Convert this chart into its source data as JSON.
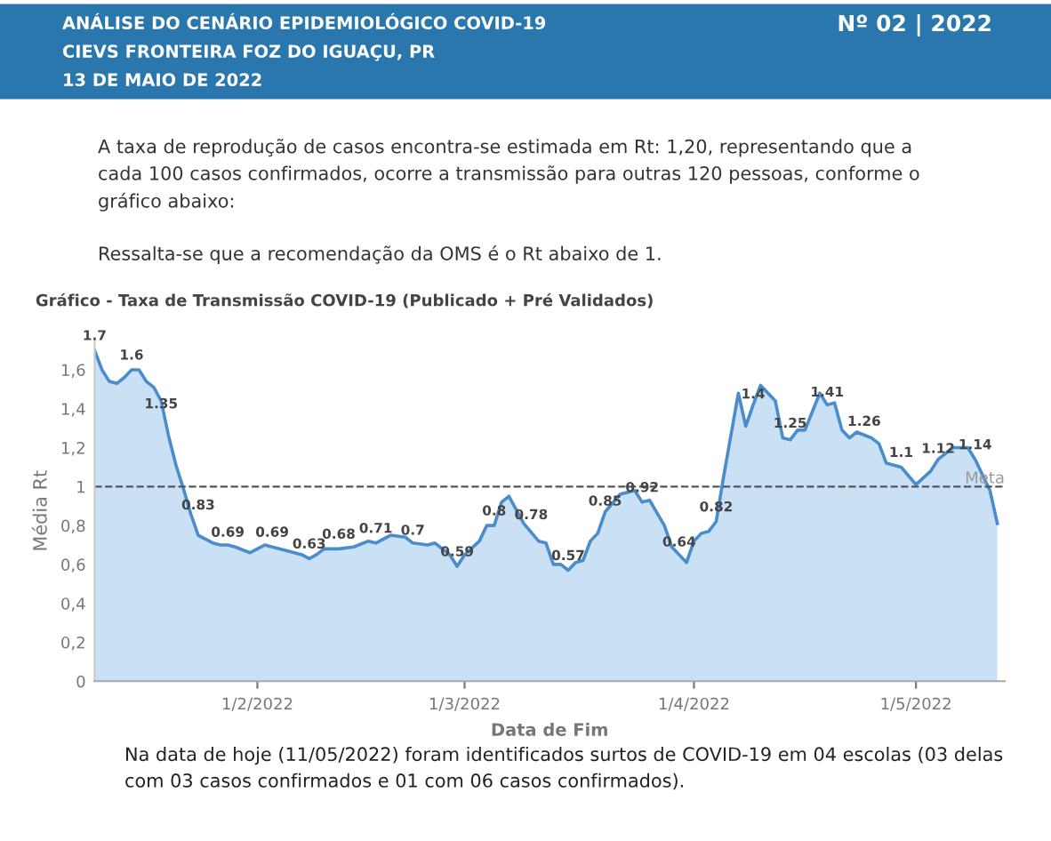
{
  "chart_data": {
    "type": "area",
    "title": "Gráfico - Taxa de Transmissão COVID-19 (Publicado + Pré Validados)",
    "xlabel": "Data de Fim",
    "ylabel": "Média Rt",
    "annotations": [
      "ANÁLISE DO CENÁRIO EPIDEMIOLÓGICO COVID-19",
      "CIEVS FRONTEIRA FOZ DO IGUAÇU, PR",
      "13 DE MAIO DE 2022",
      "Nº 02 | 2022",
      "A taxa de reprodução de casos encontra-se estimada em Rt: 1,20, representando que a cada 100 casos confirmados, ocorre a transmissão para outras 120 pessoas, conforme o gráfico abaixo:",
      "Ressalta-se que a recomendação da OMS é o Rt abaixo de 1.",
      "Na data de hoje (11/05/2022) foram identificados surtos de COVID-19 em 04 escolas (03 delas com 03 casos confirmados e 01 com 06 casos confirmados).",
      {
        "text": "1.7",
        "x": "2022-01-10",
        "y": 1.7
      },
      {
        "text": "1.6",
        "x": "2022-01-15",
        "y": 1.6
      },
      {
        "text": "1.35",
        "x": "2022-01-19",
        "y": 1.35
      },
      {
        "text": "0.83",
        "x": "2022-01-24",
        "y": 0.83
      },
      {
        "text": "0.69",
        "x": "2022-01-28",
        "y": 0.69
      },
      {
        "text": "0.69",
        "x": "2022-02-03",
        "y": 0.69
      },
      {
        "text": "0.63",
        "x": "2022-02-08",
        "y": 0.63
      },
      {
        "text": "0.68",
        "x": "2022-02-12",
        "y": 0.68
      },
      {
        "text": "0.71",
        "x": "2022-02-17",
        "y": 0.71
      },
      {
        "text": "0.7",
        "x": "2022-02-22",
        "y": 0.7
      },
      {
        "text": "0.59",
        "x": "2022-02-28",
        "y": 0.59
      },
      {
        "text": "0.8",
        "x": "2022-03-05",
        "y": 0.8
      },
      {
        "text": "0.78",
        "x": "2022-03-10",
        "y": 0.78
      },
      {
        "text": "0.57",
        "x": "2022-03-15",
        "y": 0.57
      },
      {
        "text": "0.85",
        "x": "2022-03-20",
        "y": 0.85
      },
      {
        "text": "0.92",
        "x": "2022-03-25",
        "y": 0.92
      },
      {
        "text": "0.64",
        "x": "2022-03-30",
        "y": 0.64
      },
      {
        "text": "0.82",
        "x": "2022-04-04",
        "y": 0.82
      },
      {
        "text": "1.4",
        "x": "2022-04-09",
        "y": 1.4
      },
      {
        "text": "1.25",
        "x": "2022-04-14",
        "y": 1.25
      },
      {
        "text": "1.41",
        "x": "2022-04-19",
        "y": 1.41
      },
      {
        "text": "1.26",
        "x": "2022-04-24",
        "y": 1.26
      },
      {
        "text": "1.1",
        "x": "2022-04-29",
        "y": 1.1
      },
      {
        "text": "1.12",
        "x": "2022-05-04",
        "y": 1.12
      },
      {
        "text": "1.14",
        "x": "2022-05-09",
        "y": 1.14
      }
    ],
    "x": [
      "2022-01-10",
      "2022-01-11",
      "2022-01-12",
      "2022-01-13",
      "2022-01-14",
      "2022-01-15",
      "2022-01-16",
      "2022-01-17",
      "2022-01-18",
      "2022-01-19",
      "2022-01-20",
      "2022-01-21",
      "2022-01-22",
      "2022-01-23",
      "2022-01-24",
      "2022-01-26",
      "2022-01-27",
      "2022-01-28",
      "2022-01-29",
      "2022-01-31",
      "2022-02-01",
      "2022-02-02",
      "2022-02-03",
      "2022-02-05",
      "2022-02-07",
      "2022-02-08",
      "2022-02-09",
      "2022-02-10",
      "2022-02-12",
      "2022-02-14",
      "2022-02-16",
      "2022-02-17",
      "2022-02-19",
      "2022-02-21",
      "2022-02-22",
      "2022-02-24",
      "2022-02-25",
      "2022-02-26",
      "2022-02-27",
      "2022-02-28",
      "2022-03-01",
      "2022-03-03",
      "2022-03-04",
      "2022-03-05",
      "2022-03-06",
      "2022-03-07",
      "2022-03-08",
      "2022-03-09",
      "2022-03-11",
      "2022-03-12",
      "2022-03-13",
      "2022-03-14",
      "2022-03-15",
      "2022-03-16",
      "2022-03-17",
      "2022-03-18",
      "2022-03-19",
      "2022-03-20",
      "2022-03-22",
      "2022-03-24",
      "2022-03-25",
      "2022-03-26",
      "2022-03-28",
      "2022-03-29",
      "2022-03-31",
      "2022-04-01",
      "2022-04-02",
      "2022-04-03",
      "2022-04-04",
      "2022-04-05",
      "2022-04-07",
      "2022-04-08",
      "2022-04-09",
      "2022-04-10",
      "2022-04-12",
      "2022-04-13",
      "2022-04-14",
      "2022-04-15",
      "2022-04-16",
      "2022-04-18",
      "2022-04-19",
      "2022-04-20",
      "2022-04-21",
      "2022-04-22",
      "2022-04-23",
      "2022-04-25",
      "2022-04-26",
      "2022-04-27",
      "2022-04-29",
      "2022-05-01",
      "2022-05-03",
      "2022-05-04",
      "2022-05-06",
      "2022-05-08",
      "2022-05-09",
      "2022-05-11",
      "2022-05-12"
    ],
    "series": [
      {
        "color": "#4a8ccc",
        "values": [
          1.7,
          1.6,
          1.54,
          1.53,
          1.56,
          1.6,
          1.6,
          1.54,
          1.51,
          1.44,
          1.26,
          1.11,
          0.99,
          0.86,
          0.75,
          0.71,
          0.7,
          0.7,
          0.69,
          0.66,
          0.68,
          0.7,
          0.69,
          0.67,
          0.65,
          0.63,
          0.65,
          0.68,
          0.68,
          0.69,
          0.72,
          0.71,
          0.75,
          0.74,
          0.71,
          0.7,
          0.71,
          0.68,
          0.65,
          0.59,
          0.65,
          0.72,
          0.8,
          0.8,
          0.92,
          0.95,
          0.88,
          0.81,
          0.72,
          0.71,
          0.6,
          0.6,
          0.57,
          0.61,
          0.62,
          0.72,
          0.76,
          0.87,
          0.96,
          0.98,
          0.92,
          0.93,
          0.8,
          0.69,
          0.61,
          0.72,
          0.76,
          0.77,
          0.82,
          1.05,
          1.48,
          1.31,
          1.42,
          1.52,
          1.44,
          1.25,
          1.24,
          1.29,
          1.29,
          1.48,
          1.42,
          1.43,
          1.29,
          1.25,
          1.28,
          1.25,
          1.22,
          1.12,
          1.1,
          1.01,
          1.08,
          1.14,
          1.2,
          1.2,
          1.14,
          0.98,
          0.81
        ]
      }
    ],
    "xlim": [
      "2022-01-10",
      "2022-05-13"
    ],
    "xticks": [
      {
        "value": "2022-02-01",
        "label": "1/2/2022"
      },
      {
        "value": "2022-03-01",
        "label": "1/3/2022"
      },
      {
        "value": "2022-04-01",
        "label": "1/4/2022"
      },
      {
        "value": "2022-05-01",
        "label": "1/5/2022"
      }
    ],
    "ylim": [
      0,
      1.75
    ],
    "yticks": [
      0,
      {
        "value": 0.2,
        "label": "0,2"
      },
      {
        "value": 0.4,
        "label": "0,4"
      },
      {
        "value": 0.6,
        "label": "0,6"
      },
      {
        "value": 0.8,
        "label": "0,8"
      },
      1,
      {
        "value": 1.2,
        "label": "1,2"
      },
      {
        "value": 1.4,
        "label": "1,4"
      },
      {
        "value": 1.6,
        "label": "1,6"
      }
    ],
    "ref_lines": [
      {
        "axis": "y",
        "value": 1,
        "label": "Meta",
        "color": "#555555",
        "line_style": "dashed"
      }
    ],
    "grid": false,
    "legend": false
  }
}
